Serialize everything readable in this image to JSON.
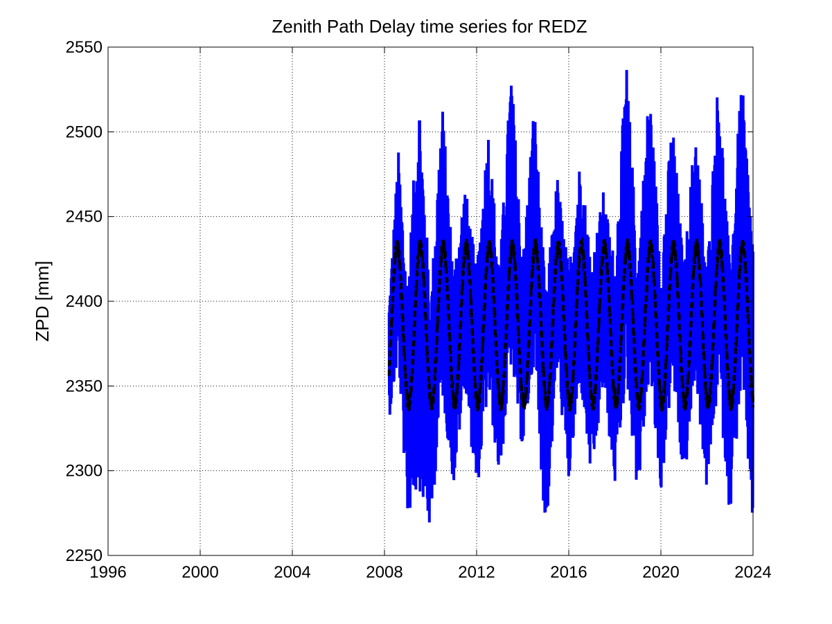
{
  "chart_data": {
    "type": "line",
    "title": "Zenith Path Delay time series for REDZ",
    "xlabel": "",
    "ylabel": "ZPD [mm]",
    "xlim": [
      1996,
      2024
    ],
    "ylim": [
      2250,
      2550
    ],
    "x_ticks": [
      "1996",
      "2000",
      "2004",
      "2008",
      "2012",
      "2016",
      "2020",
      "2024"
    ],
    "y_ticks": [
      "2250",
      "2300",
      "2350",
      "2400",
      "2450",
      "2500",
      "2550"
    ],
    "grid": true,
    "legend": "none",
    "series": [
      {
        "style": "solid",
        "color": "#0000ff",
        "x_start": 2008.2,
        "x_end": 2024.0,
        "upper_envelope": [
          [
            2008.2,
            2400
          ],
          [
            2008.6,
            2490
          ],
          [
            2009.0,
            2410
          ],
          [
            2009.5,
            2528
          ],
          [
            2010.0,
            2400
          ],
          [
            2010.5,
            2520
          ],
          [
            2011.0,
            2420
          ],
          [
            2011.5,
            2470
          ],
          [
            2012.0,
            2420
          ],
          [
            2012.5,
            2505
          ],
          [
            2013.0,
            2420
          ],
          [
            2013.5,
            2540
          ],
          [
            2014.0,
            2425
          ],
          [
            2014.5,
            2520
          ],
          [
            2015.0,
            2405
          ],
          [
            2015.5,
            2475
          ],
          [
            2016.0,
            2420
          ],
          [
            2016.5,
            2486
          ],
          [
            2017.0,
            2425
          ],
          [
            2017.5,
            2465
          ],
          [
            2018.0,
            2425
          ],
          [
            2018.5,
            2543
          ],
          [
            2019.0,
            2425
          ],
          [
            2019.5,
            2530
          ],
          [
            2020.0,
            2425
          ],
          [
            2020.5,
            2510
          ],
          [
            2021.0,
            2420
          ],
          [
            2021.5,
            2507
          ],
          [
            2022.0,
            2420
          ],
          [
            2022.5,
            2537
          ],
          [
            2023.0,
            2420
          ],
          [
            2023.5,
            2535
          ],
          [
            2024.0,
            2440
          ]
        ],
        "lower_envelope": [
          [
            2008.2,
            2330
          ],
          [
            2008.6,
            2365
          ],
          [
            2009.0,
            2272
          ],
          [
            2009.5,
            2290
          ],
          [
            2010.0,
            2262
          ],
          [
            2010.5,
            2345
          ],
          [
            2011.0,
            2290
          ],
          [
            2011.5,
            2350
          ],
          [
            2012.0,
            2284
          ],
          [
            2012.5,
            2345
          ],
          [
            2013.0,
            2294
          ],
          [
            2013.5,
            2360
          ],
          [
            2014.0,
            2310
          ],
          [
            2014.5,
            2365
          ],
          [
            2015.0,
            2258
          ],
          [
            2015.5,
            2360
          ],
          [
            2016.0,
            2291
          ],
          [
            2016.5,
            2350
          ],
          [
            2017.0,
            2291
          ],
          [
            2017.5,
            2350
          ],
          [
            2018.0,
            2290
          ],
          [
            2018.5,
            2355
          ],
          [
            2019.0,
            2284
          ],
          [
            2019.5,
            2355
          ],
          [
            2020.0,
            2285
          ],
          [
            2020.5,
            2355
          ],
          [
            2021.0,
            2289
          ],
          [
            2021.5,
            2355
          ],
          [
            2022.0,
            2286
          ],
          [
            2022.5,
            2350
          ],
          [
            2023.0,
            2272
          ],
          [
            2023.5,
            2350
          ],
          [
            2024.0,
            2265
          ]
        ]
      },
      {
        "style": "dashed",
        "color": "#000000",
        "model": "seasonal",
        "mean": 2386,
        "amplitude": 47,
        "period_years": 1.0,
        "peak_phase_year_fraction": 0.55,
        "x_start": 2008.2,
        "x_end": 2024.0
      }
    ]
  }
}
